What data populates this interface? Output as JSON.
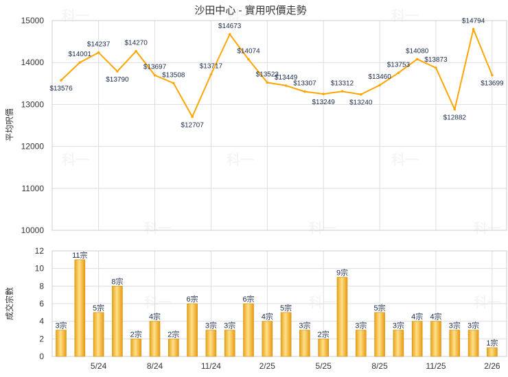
{
  "chart_data": [
    {
      "type": "line",
      "title": "沙田中心 - 實用呎價走勢",
      "ylabel": "平均呎價",
      "ylim": [
        10000,
        15000
      ],
      "yticks": [
        10000,
        11000,
        12000,
        13000,
        14000,
        15000
      ],
      "grid": true,
      "color": "#FFA500",
      "label_prefix": "$",
      "values": [
        13576,
        14001,
        14237,
        13790,
        14270,
        13697,
        13508,
        12707,
        13717,
        14673,
        14074,
        13523,
        13449,
        13307,
        13249,
        13312,
        13240,
        13460,
        13753,
        14080,
        13873,
        12882,
        14794,
        13699
      ]
    },
    {
      "type": "bar",
      "ylabel": "成交宗數",
      "ylim": [
        0,
        12
      ],
      "yticks": [
        0,
        2,
        4,
        6,
        8,
        10,
        12
      ],
      "grid": true,
      "color": "#FFB300",
      "label_suffix": "宗",
      "values": [
        3,
        11,
        5,
        8,
        2,
        4,
        2,
        6,
        3,
        3,
        6,
        4,
        5,
        3,
        2,
        9,
        3,
        5,
        3,
        4,
        4,
        3,
        3,
        1
      ],
      "x_tick_labels": [
        {
          "index": 2,
          "label": "5/24"
        },
        {
          "index": 5,
          "label": "8/24"
        },
        {
          "index": 8,
          "label": "11/24"
        },
        {
          "index": 11,
          "label": "2/25"
        },
        {
          "index": 14,
          "label": "5/25"
        },
        {
          "index": 17,
          "label": "8/25"
        },
        {
          "index": 20,
          "label": "11/25"
        },
        {
          "index": 23,
          "label": "2/26"
        }
      ]
    }
  ],
  "watermark": "科一"
}
